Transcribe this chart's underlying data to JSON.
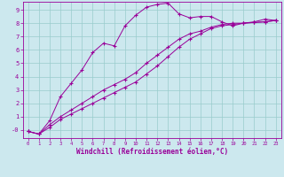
{
  "xlabel": "Windchill (Refroidissement éolien,°C)",
  "bg_color": "#cce8ee",
  "line_color": "#990099",
  "grid_color": "#99cccc",
  "xlim": [
    -0.5,
    23.5
  ],
  "ylim": [
    -0.6,
    9.6
  ],
  "xticks": [
    0,
    1,
    2,
    3,
    4,
    5,
    6,
    7,
    8,
    9,
    10,
    11,
    12,
    13,
    14,
    15,
    16,
    17,
    18,
    19,
    20,
    21,
    22,
    23
  ],
  "yticks": [
    0,
    1,
    2,
    3,
    4,
    5,
    6,
    7,
    8,
    9
  ],
  "ytick_labels": [
    "-0",
    "1",
    "2",
    "3",
    "4",
    "5",
    "6",
    "7",
    "8",
    "9"
  ],
  "line1_x": [
    0,
    1,
    2,
    3,
    4,
    5,
    6,
    7,
    8,
    9,
    10,
    11,
    12,
    13,
    14,
    15,
    16,
    17,
    18,
    19,
    20,
    21,
    22,
    23
  ],
  "line1_y": [
    -0.1,
    -0.3,
    0.7,
    2.5,
    3.5,
    4.5,
    5.8,
    6.5,
    6.3,
    7.8,
    8.6,
    9.2,
    9.4,
    9.5,
    8.7,
    8.4,
    8.5,
    8.5,
    8.1,
    7.8,
    8.0,
    8.1,
    8.3,
    8.2
  ],
  "line2_x": [
    0,
    1,
    2,
    3,
    4,
    5,
    6,
    7,
    8,
    9,
    10,
    11,
    12,
    13,
    14,
    15,
    16,
    17,
    18,
    19,
    20,
    21,
    22,
    23
  ],
  "line2_y": [
    -0.1,
    -0.3,
    0.2,
    0.8,
    1.2,
    1.6,
    2.0,
    2.4,
    2.8,
    3.2,
    3.6,
    4.2,
    4.8,
    5.5,
    6.2,
    6.8,
    7.2,
    7.6,
    7.8,
    7.9,
    8.0,
    8.05,
    8.1,
    8.2
  ],
  "line3_x": [
    0,
    1,
    2,
    3,
    4,
    5,
    6,
    7,
    8,
    9,
    10,
    11,
    12,
    13,
    14,
    15,
    16,
    17,
    18,
    19,
    20,
    21,
    22,
    23
  ],
  "line3_y": [
    -0.1,
    -0.3,
    0.4,
    1.0,
    1.5,
    2.0,
    2.5,
    3.0,
    3.4,
    3.8,
    4.3,
    5.0,
    5.6,
    6.2,
    6.8,
    7.2,
    7.4,
    7.7,
    7.9,
    8.0,
    8.0,
    8.05,
    8.1,
    8.2
  ]
}
